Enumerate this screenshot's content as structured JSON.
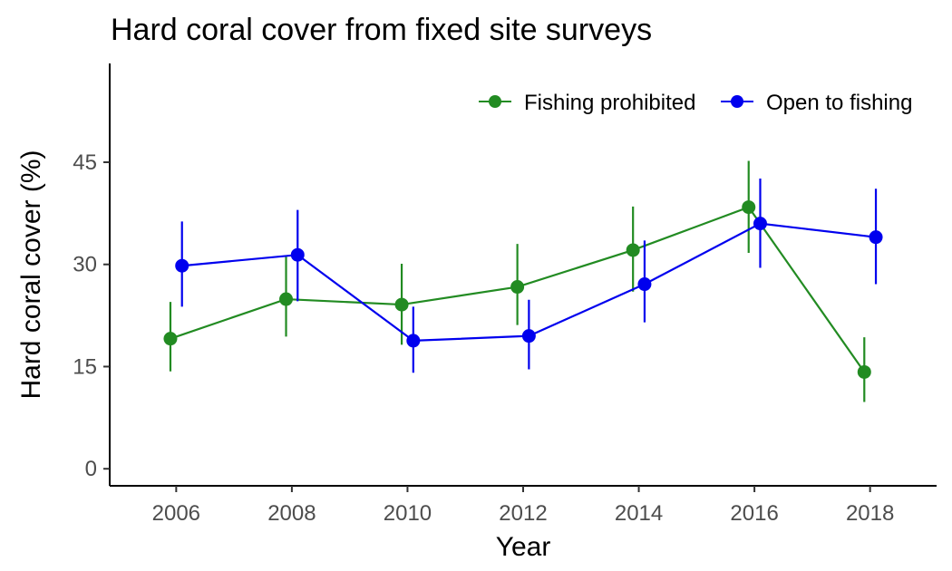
{
  "chart_data": {
    "type": "line",
    "title": "Hard coral cover from fixed site surveys",
    "xlabel": "Year",
    "ylabel": "Hard coral cover (%)",
    "x": [
      2006,
      2008,
      2010,
      2012,
      2014,
      2016,
      2018
    ],
    "x_ticks": [
      "2006",
      "2008",
      "2010",
      "2012",
      "2014",
      "2016",
      "2018"
    ],
    "y_ticks": [
      "0",
      "15",
      "30",
      "45"
    ],
    "xlim": [
      2004.85,
      2019.15
    ],
    "ylim": [
      -2.5,
      59.5
    ],
    "legend_position": "top-right",
    "series": [
      {
        "name": "Fishing prohibited",
        "color": "#228B22",
        "dodge_years": -0.1,
        "values": [
          19.1,
          24.9,
          24.1,
          26.7,
          32.1,
          38.4,
          14.2
        ],
        "lower": [
          14.3,
          19.4,
          18.2,
          21.1,
          26.0,
          31.7,
          9.8
        ],
        "upper": [
          24.5,
          31.1,
          30.1,
          33.0,
          38.5,
          45.2,
          19.3
        ]
      },
      {
        "name": "Open to fishing",
        "color": "#0000EE",
        "dodge_years": 0.1,
        "values": [
          29.8,
          31.4,
          18.8,
          19.5,
          27.1,
          36.0,
          34.0
        ],
        "lower": [
          23.8,
          24.6,
          14.1,
          14.6,
          21.5,
          29.5,
          27.1
        ],
        "upper": [
          36.3,
          38.0,
          23.8,
          24.8,
          33.5,
          42.6,
          41.1
        ]
      }
    ]
  }
}
